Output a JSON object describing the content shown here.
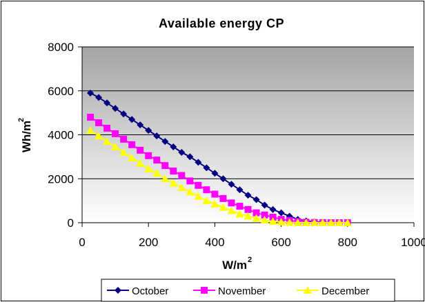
{
  "chart_data": {
    "type": "line",
    "title": "Available energy CP",
    "xlabel": "W/m",
    "xlabel_sup": "2",
    "ylabel": "Wh/m",
    "ylabel_sup": "2",
    "xlim": [
      0,
      1000
    ],
    "ylim": [
      0,
      8000
    ],
    "x_ticks": [
      0,
      200,
      400,
      600,
      800,
      1000
    ],
    "y_ticks": [
      0,
      2000,
      4000,
      6000,
      8000
    ],
    "grid": "horizontal",
    "legend_position": "bottom",
    "series": [
      {
        "name": "October",
        "color": "#000080",
        "marker": "diamond",
        "points": [
          [
            25,
            5900
          ],
          [
            50,
            5700
          ],
          [
            75,
            5450
          ],
          [
            100,
            5200
          ],
          [
            125,
            4950
          ],
          [
            150,
            4700
          ],
          [
            175,
            4450
          ],
          [
            200,
            4200
          ],
          [
            225,
            3950
          ],
          [
            250,
            3700
          ],
          [
            275,
            3450
          ],
          [
            300,
            3200
          ],
          [
            325,
            3000
          ],
          [
            350,
            2750
          ],
          [
            375,
            2500
          ],
          [
            400,
            2250
          ],
          [
            425,
            2000
          ],
          [
            450,
            1750
          ],
          [
            475,
            1500
          ],
          [
            500,
            1250
          ],
          [
            525,
            1050
          ],
          [
            550,
            800
          ],
          [
            575,
            600
          ],
          [
            600,
            450
          ],
          [
            625,
            300
          ],
          [
            650,
            150
          ],
          [
            675,
            80
          ],
          [
            700,
            40
          ],
          [
            725,
            20
          ],
          [
            750,
            10
          ],
          [
            775,
            5
          ],
          [
            800,
            0
          ]
        ]
      },
      {
        "name": "November",
        "color": "#FF00FF",
        "marker": "square",
        "points": [
          [
            25,
            4800
          ],
          [
            50,
            4550
          ],
          [
            75,
            4300
          ],
          [
            100,
            4050
          ],
          [
            125,
            3800
          ],
          [
            150,
            3550
          ],
          [
            175,
            3300
          ],
          [
            200,
            3050
          ],
          [
            225,
            2850
          ],
          [
            250,
            2600
          ],
          [
            275,
            2350
          ],
          [
            300,
            2150
          ],
          [
            325,
            1900
          ],
          [
            350,
            1700
          ],
          [
            375,
            1500
          ],
          [
            400,
            1300
          ],
          [
            425,
            1100
          ],
          [
            450,
            900
          ],
          [
            475,
            750
          ],
          [
            500,
            600
          ],
          [
            525,
            450
          ],
          [
            550,
            350
          ],
          [
            575,
            250
          ],
          [
            600,
            150
          ],
          [
            625,
            100
          ],
          [
            650,
            50
          ],
          [
            675,
            20
          ],
          [
            700,
            10
          ],
          [
            725,
            5
          ],
          [
            750,
            0
          ],
          [
            775,
            0
          ],
          [
            800,
            0
          ]
        ]
      },
      {
        "name": "December",
        "color": "#FFFF00",
        "marker": "triangle",
        "points": [
          [
            25,
            4200
          ],
          [
            50,
            3950
          ],
          [
            75,
            3700
          ],
          [
            100,
            3450
          ],
          [
            125,
            3200
          ],
          [
            150,
            2950
          ],
          [
            175,
            2700
          ],
          [
            200,
            2450
          ],
          [
            225,
            2250
          ],
          [
            250,
            2000
          ],
          [
            275,
            1800
          ],
          [
            300,
            1600
          ],
          [
            325,
            1400
          ],
          [
            350,
            1200
          ],
          [
            375,
            1000
          ],
          [
            400,
            850
          ],
          [
            425,
            700
          ],
          [
            450,
            550
          ],
          [
            475,
            400
          ],
          [
            500,
            300
          ],
          [
            525,
            200
          ],
          [
            550,
            120
          ],
          [
            575,
            60
          ],
          [
            600,
            30
          ],
          [
            625,
            10
          ],
          [
            650,
            0
          ],
          [
            675,
            0
          ],
          [
            700,
            0
          ],
          [
            725,
            0
          ],
          [
            750,
            0
          ],
          [
            775,
            0
          ],
          [
            800,
            0
          ]
        ]
      }
    ]
  }
}
